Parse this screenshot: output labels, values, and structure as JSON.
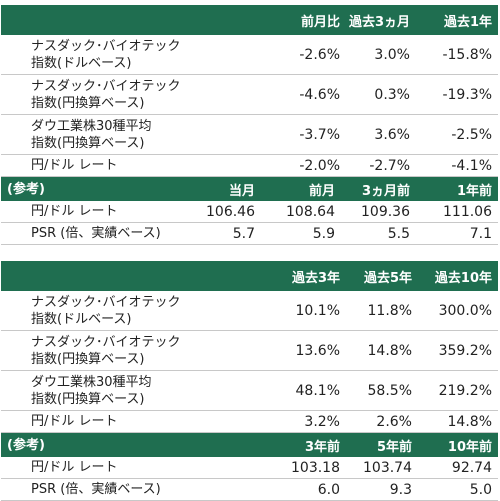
{
  "table1": {
    "headers": [
      "",
      "前月比",
      "過去3ヵ月",
      "過去1年"
    ],
    "rows": [
      {
        "label": "ナスダック･バイオテック\n指数(ドルベース)",
        "v": [
          "-2.6%",
          "3.0%",
          "-15.8%"
        ]
      },
      {
        "label": "ナスダック･バイオテック\n指数(円換算ベース)",
        "v": [
          "-4.6%",
          "0.3%",
          "-19.3%"
        ]
      },
      {
        "label": "ダウ工業株30種平均\n指数(円換算ベース)",
        "v": [
          "-3.7%",
          "3.6%",
          "-2.5%"
        ]
      },
      {
        "label": "円/ドル レート",
        "v": [
          "-2.0%",
          "-2.7%",
          "-4.1%"
        ]
      }
    ],
    "ref_header": [
      "(参考)",
      "当月",
      "前月",
      "3ヵ月前",
      "1年前"
    ],
    "ref_rows": [
      {
        "label": "円/ドル レート",
        "v": [
          "106.46",
          "108.64",
          "109.36",
          "111.06"
        ]
      },
      {
        "label": "PSR (倍、実績ベース)",
        "v": [
          "5.7",
          "5.9",
          "5.5",
          "7.1"
        ]
      }
    ]
  },
  "table2": {
    "headers": [
      "",
      "過去3年",
      "過去5年",
      "過去10年"
    ],
    "rows": [
      {
        "label": "ナスダック･バイオテック\n指数(ドルベース)",
        "v": [
          "10.1%",
          "11.8%",
          "300.0%"
        ]
      },
      {
        "label": "ナスダック･バイオテック\n指数(円換算ベース)",
        "v": [
          "13.6%",
          "14.8%",
          "359.2%"
        ]
      },
      {
        "label": "ダウ工業株30種平均\n指数(円換算ベース)",
        "v": [
          "48.1%",
          "58.5%",
          "219.2%"
        ]
      },
      {
        "label": "円/ドル レート",
        "v": [
          "3.2%",
          "2.6%",
          "14.8%"
        ]
      }
    ],
    "ref_header": [
      "(参考)",
      "3年前",
      "5年前",
      "10年前"
    ],
    "ref_rows": [
      {
        "label": "円/ドル レート",
        "v": [
          "103.18",
          "103.74",
          "92.74"
        ]
      },
      {
        "label": "PSR (倍、実績ベース)",
        "v": [
          "6.0",
          "9.3",
          "5.0"
        ]
      }
    ]
  }
}
